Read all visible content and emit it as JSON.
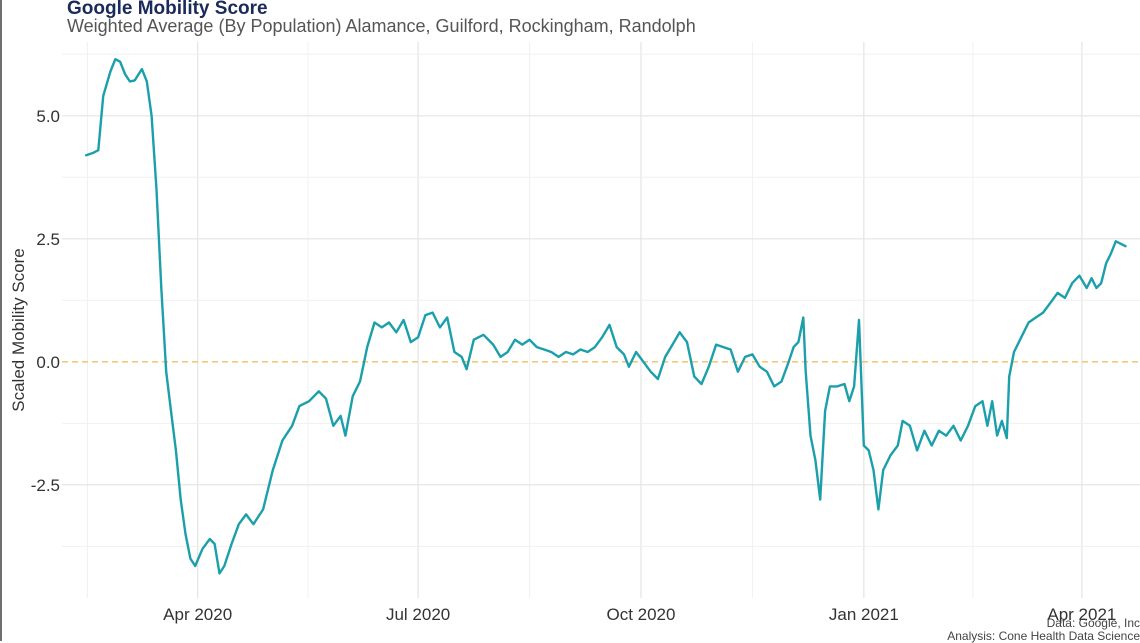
{
  "chart_data": {
    "type": "line",
    "title": "Google Mobility Score",
    "subtitle": "Weighted Average (By Population) Alamance, Guilford, Rockingham, Randolph",
    "ylabel": "Scaled Mobility Score",
    "xlabel": "",
    "x_ticks": [
      "Apr 2020",
      "Jul 2020",
      "Oct 2020",
      "Jan 2021",
      "Apr 2021"
    ],
    "x_tick_dates": [
      "2020-04-01",
      "2020-07-01",
      "2020-10-01",
      "2021-01-01",
      "2021-04-01"
    ],
    "y_ticks": [
      "5.0",
      "2.5",
      "0.0",
      "-2.5"
    ],
    "y_tick_values": [
      5.0,
      2.5,
      0.0,
      -2.5
    ],
    "ylim": [
      -4.8,
      6.5
    ],
    "xlim": [
      "2020-02-05",
      "2021-04-25"
    ],
    "grid": true,
    "reference_line": {
      "y": 0,
      "style": "dashed",
      "color": "#f0c060"
    },
    "series": [
      {
        "color": "#1a9fab",
        "points": [
          [
            "2020-02-15",
            4.2
          ],
          [
            "2020-02-18",
            4.25
          ],
          [
            "2020-02-20",
            4.3
          ],
          [
            "2020-02-22",
            5.4
          ],
          [
            "2020-02-25",
            5.9
          ],
          [
            "2020-02-27",
            6.15
          ],
          [
            "2020-02-29",
            6.1
          ],
          [
            "2020-03-02",
            5.85
          ],
          [
            "2020-03-04",
            5.7
          ],
          [
            "2020-03-06",
            5.72
          ],
          [
            "2020-03-09",
            5.95
          ],
          [
            "2020-03-11",
            5.7
          ],
          [
            "2020-03-13",
            5.0
          ],
          [
            "2020-03-15",
            3.5
          ],
          [
            "2020-03-17",
            1.5
          ],
          [
            "2020-03-19",
            -0.2
          ],
          [
            "2020-03-21",
            -1.0
          ],
          [
            "2020-03-23",
            -1.8
          ],
          [
            "2020-03-25",
            -2.8
          ],
          [
            "2020-03-27",
            -3.5
          ],
          [
            "2020-03-29",
            -4.0
          ],
          [
            "2020-03-31",
            -4.15
          ],
          [
            "2020-04-03",
            -3.8
          ],
          [
            "2020-04-06",
            -3.6
          ],
          [
            "2020-04-08",
            -3.7
          ],
          [
            "2020-04-10",
            -4.3
          ],
          [
            "2020-04-12",
            -4.15
          ],
          [
            "2020-04-15",
            -3.7
          ],
          [
            "2020-04-18",
            -3.3
          ],
          [
            "2020-04-21",
            -3.1
          ],
          [
            "2020-04-24",
            -3.3
          ],
          [
            "2020-04-28",
            -3.0
          ],
          [
            "2020-05-02",
            -2.2
          ],
          [
            "2020-05-06",
            -1.6
          ],
          [
            "2020-05-10",
            -1.3
          ],
          [
            "2020-05-13",
            -0.9
          ],
          [
            "2020-05-17",
            -0.8
          ],
          [
            "2020-05-21",
            -0.6
          ],
          [
            "2020-05-24",
            -0.75
          ],
          [
            "2020-05-27",
            -1.3
          ],
          [
            "2020-05-30",
            -1.1
          ],
          [
            "2020-06-01",
            -1.5
          ],
          [
            "2020-06-04",
            -0.7
          ],
          [
            "2020-06-07",
            -0.4
          ],
          [
            "2020-06-10",
            0.3
          ],
          [
            "2020-06-13",
            0.8
          ],
          [
            "2020-06-16",
            0.7
          ],
          [
            "2020-06-19",
            0.8
          ],
          [
            "2020-06-22",
            0.6
          ],
          [
            "2020-06-25",
            0.85
          ],
          [
            "2020-06-28",
            0.4
          ],
          [
            "2020-07-01",
            0.5
          ],
          [
            "2020-07-04",
            0.95
          ],
          [
            "2020-07-07",
            1.0
          ],
          [
            "2020-07-10",
            0.7
          ],
          [
            "2020-07-13",
            0.9
          ],
          [
            "2020-07-16",
            0.2
          ],
          [
            "2020-07-19",
            0.1
          ],
          [
            "2020-07-21",
            -0.15
          ],
          [
            "2020-07-24",
            0.45
          ],
          [
            "2020-07-28",
            0.55
          ],
          [
            "2020-08-01",
            0.35
          ],
          [
            "2020-08-04",
            0.1
          ],
          [
            "2020-08-07",
            0.2
          ],
          [
            "2020-08-10",
            0.45
          ],
          [
            "2020-08-13",
            0.35
          ],
          [
            "2020-08-16",
            0.45
          ],
          [
            "2020-08-19",
            0.3
          ],
          [
            "2020-08-22",
            0.25
          ],
          [
            "2020-08-25",
            0.2
          ],
          [
            "2020-08-28",
            0.1
          ],
          [
            "2020-08-31",
            0.2
          ],
          [
            "2020-09-03",
            0.15
          ],
          [
            "2020-09-06",
            0.25
          ],
          [
            "2020-09-09",
            0.2
          ],
          [
            "2020-09-12",
            0.3
          ],
          [
            "2020-09-15",
            0.5
          ],
          [
            "2020-09-18",
            0.75
          ],
          [
            "2020-09-21",
            0.3
          ],
          [
            "2020-09-24",
            0.15
          ],
          [
            "2020-09-26",
            -0.1
          ],
          [
            "2020-09-29",
            0.2
          ],
          [
            "2020-10-02",
            0.0
          ],
          [
            "2020-10-05",
            -0.2
          ],
          [
            "2020-10-08",
            -0.35
          ],
          [
            "2020-10-11",
            0.1
          ],
          [
            "2020-10-14",
            0.35
          ],
          [
            "2020-10-17",
            0.6
          ],
          [
            "2020-10-20",
            0.4
          ],
          [
            "2020-10-23",
            -0.3
          ],
          [
            "2020-10-26",
            -0.45
          ],
          [
            "2020-10-29",
            -0.1
          ],
          [
            "2020-11-01",
            0.35
          ],
          [
            "2020-11-04",
            0.3
          ],
          [
            "2020-11-07",
            0.25
          ],
          [
            "2020-11-10",
            -0.2
          ],
          [
            "2020-11-13",
            0.1
          ],
          [
            "2020-11-16",
            0.15
          ],
          [
            "2020-11-19",
            -0.1
          ],
          [
            "2020-11-22",
            -0.2
          ],
          [
            "2020-11-25",
            -0.5
          ],
          [
            "2020-11-28",
            -0.4
          ],
          [
            "2020-12-01",
            0.0
          ],
          [
            "2020-12-03",
            0.3
          ],
          [
            "2020-12-05",
            0.4
          ],
          [
            "2020-12-07",
            0.9
          ],
          [
            "2020-12-08",
            -0.2
          ],
          [
            "2020-12-10",
            -1.5
          ],
          [
            "2020-12-12",
            -2.0
          ],
          [
            "2020-12-14",
            -2.8
          ],
          [
            "2020-12-16",
            -1.0
          ],
          [
            "2020-12-18",
            -0.5
          ],
          [
            "2020-12-21",
            -0.5
          ],
          [
            "2020-12-24",
            -0.45
          ],
          [
            "2020-12-26",
            -0.8
          ],
          [
            "2020-12-28",
            -0.5
          ],
          [
            "2020-12-30",
            0.85
          ],
          [
            "2021-01-01",
            -1.7
          ],
          [
            "2021-01-03",
            -1.8
          ],
          [
            "2021-01-05",
            -2.2
          ],
          [
            "2021-01-07",
            -3.0
          ],
          [
            "2021-01-09",
            -2.2
          ],
          [
            "2021-01-12",
            -1.9
          ],
          [
            "2021-01-15",
            -1.7
          ],
          [
            "2021-01-17",
            -1.2
          ],
          [
            "2021-01-20",
            -1.3
          ],
          [
            "2021-01-23",
            -1.8
          ],
          [
            "2021-01-26",
            -1.4
          ],
          [
            "2021-01-29",
            -1.7
          ],
          [
            "2021-02-01",
            -1.4
          ],
          [
            "2021-02-04",
            -1.5
          ],
          [
            "2021-02-07",
            -1.3
          ],
          [
            "2021-02-10",
            -1.6
          ],
          [
            "2021-02-13",
            -1.3
          ],
          [
            "2021-02-16",
            -0.9
          ],
          [
            "2021-02-19",
            -0.8
          ],
          [
            "2021-02-21",
            -1.3
          ],
          [
            "2021-02-23",
            -0.8
          ],
          [
            "2021-02-25",
            -1.5
          ],
          [
            "2021-02-27",
            -1.2
          ],
          [
            "2021-03-01",
            -1.55
          ],
          [
            "2021-03-02",
            -0.3
          ],
          [
            "2021-03-04",
            0.2
          ],
          [
            "2021-03-07",
            0.5
          ],
          [
            "2021-03-10",
            0.8
          ],
          [
            "2021-03-13",
            0.9
          ],
          [
            "2021-03-16",
            1.0
          ],
          [
            "2021-03-19",
            1.2
          ],
          [
            "2021-03-22",
            1.4
          ],
          [
            "2021-03-25",
            1.3
          ],
          [
            "2021-03-28",
            1.6
          ],
          [
            "2021-03-31",
            1.75
          ],
          [
            "2021-04-03",
            1.5
          ],
          [
            "2021-04-05",
            1.7
          ],
          [
            "2021-04-07",
            1.5
          ],
          [
            "2021-04-09",
            1.6
          ],
          [
            "2021-04-11",
            2.0
          ],
          [
            "2021-04-13",
            2.2
          ],
          [
            "2021-04-15",
            2.45
          ],
          [
            "2021-04-17",
            2.4
          ],
          [
            "2021-04-19",
            2.35
          ]
        ]
      }
    ]
  },
  "caption": {
    "line1": "Data: Google, Inc",
    "line2": "Analysis: Cone Health Data Science"
  }
}
